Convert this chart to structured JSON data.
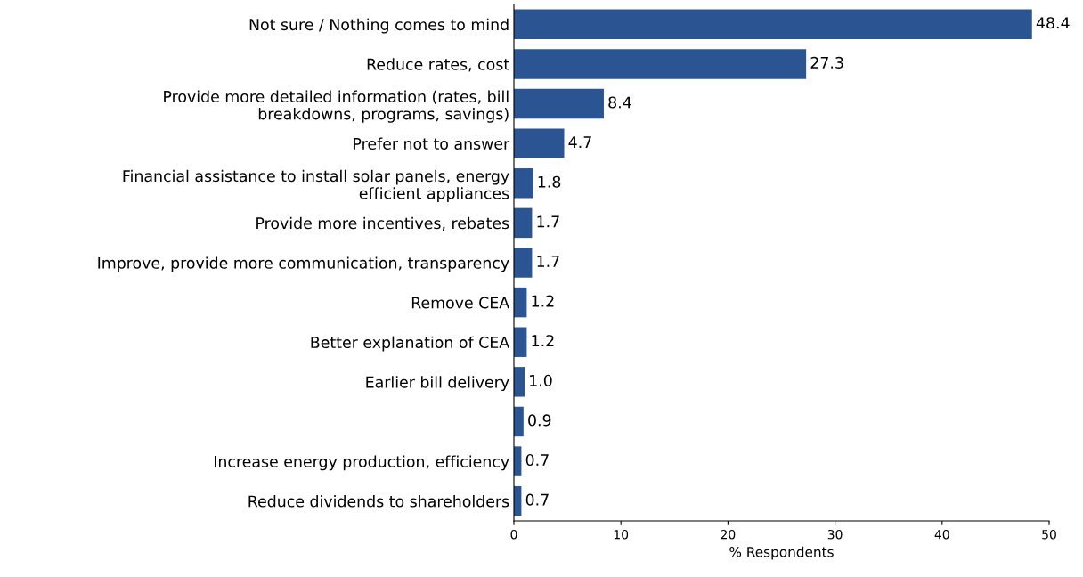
{
  "chart_data": {
    "type": "bar",
    "orientation": "horizontal",
    "xlabel": "% Respondents",
    "categories": [
      "Not sure / Nothing comes to mind",
      "Reduce rates, cost",
      "Provide more detailed information (rates, bill breakdowns, programs, savings)",
      "Prefer not to answer",
      "Financial assistance to install solar panels, energy efficient appliances",
      "Provide more incentives, rebates",
      "Improve, provide more communication, transparency",
      "Remove CEA",
      "Better explanation of CEA",
      "Earlier bill delivery",
      null,
      "Increase energy production, efficiency",
      "Reduce dividends to shareholders"
    ],
    "values": [
      48.4,
      27.3,
      8.4,
      4.7,
      1.8,
      1.7,
      1.7,
      1.2,
      1.2,
      1.0,
      0.9,
      0.7,
      0.7
    ],
    "value_labels": [
      "48.4",
      "27.3",
      "8.4",
      "4.7",
      "1.8",
      "1.7",
      "1.7",
      "1.2",
      "1.2",
      "1.0",
      "0.9",
      "0.7",
      "0.7"
    ],
    "color": "#2a5592",
    "xlim": [
      0,
      50
    ],
    "xticks": [
      0,
      10,
      20,
      30,
      40,
      50
    ],
    "grid": false,
    "legend": false
  }
}
